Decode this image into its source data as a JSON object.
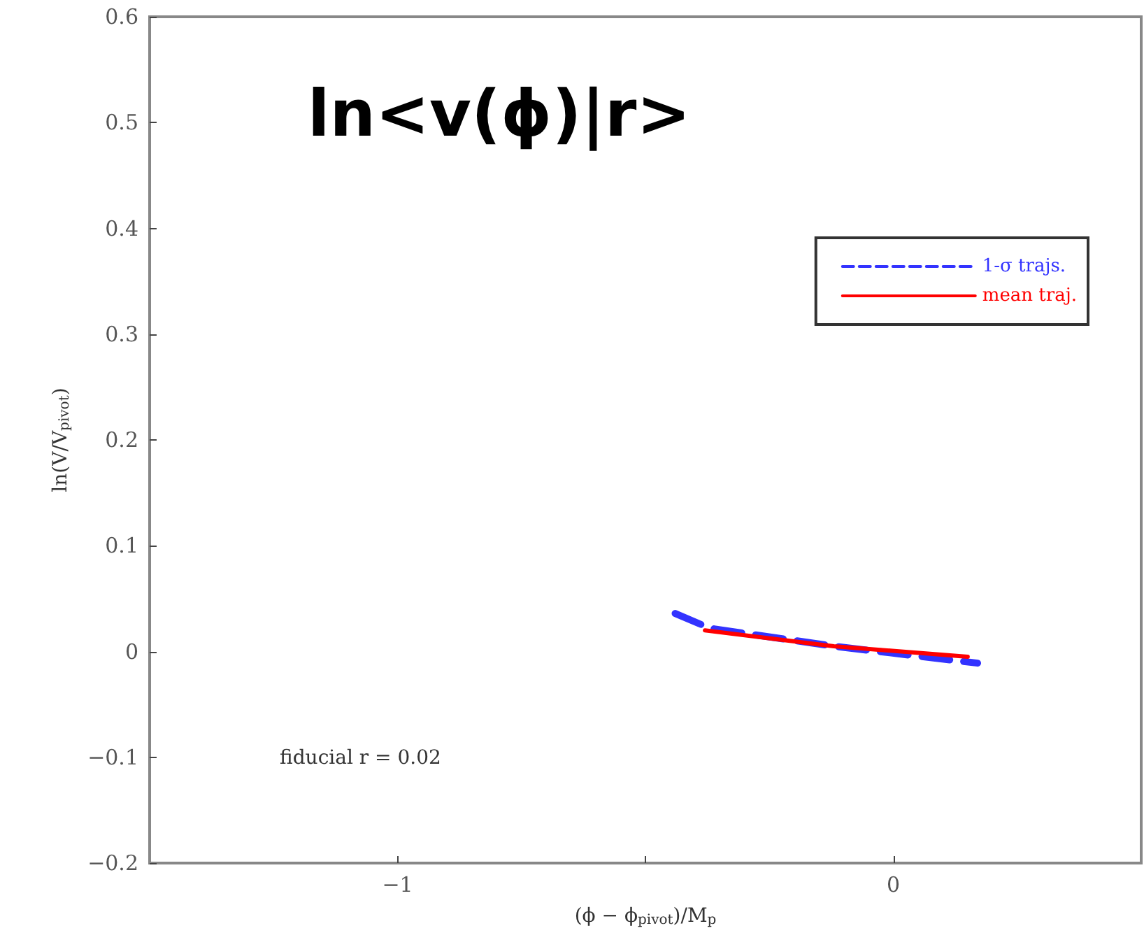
{
  "chart_data": {
    "type": "line",
    "title": "ln<v(ϕ)|r>",
    "xlabel": "(ϕ − ϕ$_{pivot}$)/M$_{p}$",
    "ylabel": "ln(V/V$_{pivot}$)",
    "annotations": [
      "fiducial r = 0.02"
    ],
    "xlim": [
      -1.5,
      0.5
    ],
    "xticks": [
      -1,
      {
        "value": -0.5,
        "label": null
      },
      0
    ],
    "ylim": [
      -0.2,
      0.6
    ],
    "yticks": [
      -0.2,
      -0.1,
      0,
      0.1,
      0.2,
      0.3,
      0.4,
      0.5,
      0.6
    ],
    "grid": false,
    "legend": "right",
    "marker": "none",
    "series": [
      {
        "name": "1-σ trajs.",
        "color": "#3333ff",
        "line_style": "dashed",
        "x": [
          -0.44,
          -0.37,
          -0.12,
          0.17
        ],
        "values": [
          0.036,
          0.022,
          0.005,
          -0.011
        ]
      },
      {
        "name": "mean traj.",
        "color": "#ff0000",
        "line_style": "solid",
        "x": [
          -0.38,
          -0.12,
          0.15
        ],
        "values": [
          0.02,
          0.005,
          -0.005
        ]
      }
    ]
  }
}
